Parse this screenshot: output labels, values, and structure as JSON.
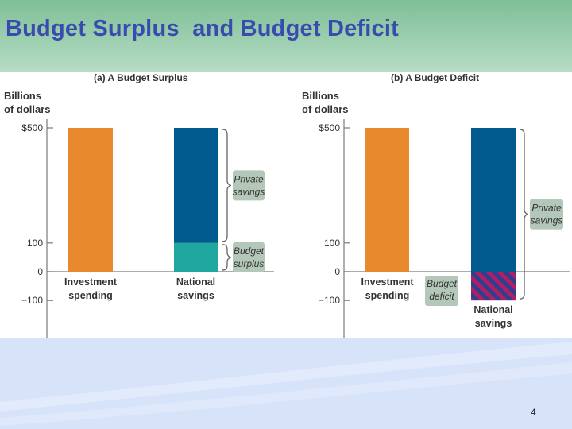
{
  "slide": {
    "title": "Budget Surplus  and Budget Deficit",
    "page_number": "4"
  },
  "colors": {
    "header_bg": "#9ccfb0",
    "title": "#3a4bb0",
    "investment": "#e8892e",
    "private_savings": "#005a8e",
    "budget_surplus": "#1ea8a0",
    "budget_deficit_hatch_a": "#2f3f8f",
    "budget_deficit_hatch_b": "#b01e64",
    "label_box": "#b4c8b9",
    "footer_bg": "#d7e3f9"
  },
  "chart_data": [
    {
      "type": "bar",
      "title": "(a) A Budget Surplus",
      "ylabel": "Billions\nof dollars",
      "ylim": [
        -100,
        500
      ],
      "yticks": [
        {
          "value": 500,
          "label": "$500"
        },
        {
          "value": 100,
          "label": "100"
        },
        {
          "value": 0,
          "label": "0"
        },
        {
          "value": -100,
          "label": "−100"
        }
      ],
      "categories": [
        {
          "label": "Investment\nspending",
          "segments": [
            {
              "from": 0,
              "to": 500,
              "kind": "investment"
            }
          ]
        },
        {
          "label": "National\nsavings",
          "segments": [
            {
              "from": 0,
              "to": 100,
              "kind": "budget_surplus"
            },
            {
              "from": 100,
              "to": 500,
              "kind": "private_savings"
            }
          ]
        }
      ],
      "annotations": [
        {
          "label": "Private\nsavings",
          "from": 100,
          "to": 500
        },
        {
          "label": "Budget\nsurplus",
          "from": 0,
          "to": 100
        }
      ]
    },
    {
      "type": "bar",
      "title": "(b) A Budget Deficit",
      "ylabel": "Billions\nof dollars",
      "ylim": [
        -100,
        500
      ],
      "yticks": [
        {
          "value": 500,
          "label": "$500"
        },
        {
          "value": 100,
          "label": "100"
        },
        {
          "value": 0,
          "label": "0"
        },
        {
          "value": -100,
          "label": "−100"
        }
      ],
      "categories": [
        {
          "label": "Investment\nspending",
          "segments": [
            {
              "from": 0,
              "to": 500,
              "kind": "investment"
            }
          ]
        },
        {
          "label": "National\nsavings",
          "segments": [
            {
              "from": 0,
              "to": 500,
              "kind": "private_savings"
            },
            {
              "from": -100,
              "to": 0,
              "kind": "budget_deficit"
            }
          ]
        }
      ],
      "annotations": [
        {
          "label": "Private\nsavings",
          "from": -100,
          "to": 500
        },
        {
          "label": "Budget\ndeficit",
          "from": -100,
          "to": 0
        }
      ]
    }
  ]
}
